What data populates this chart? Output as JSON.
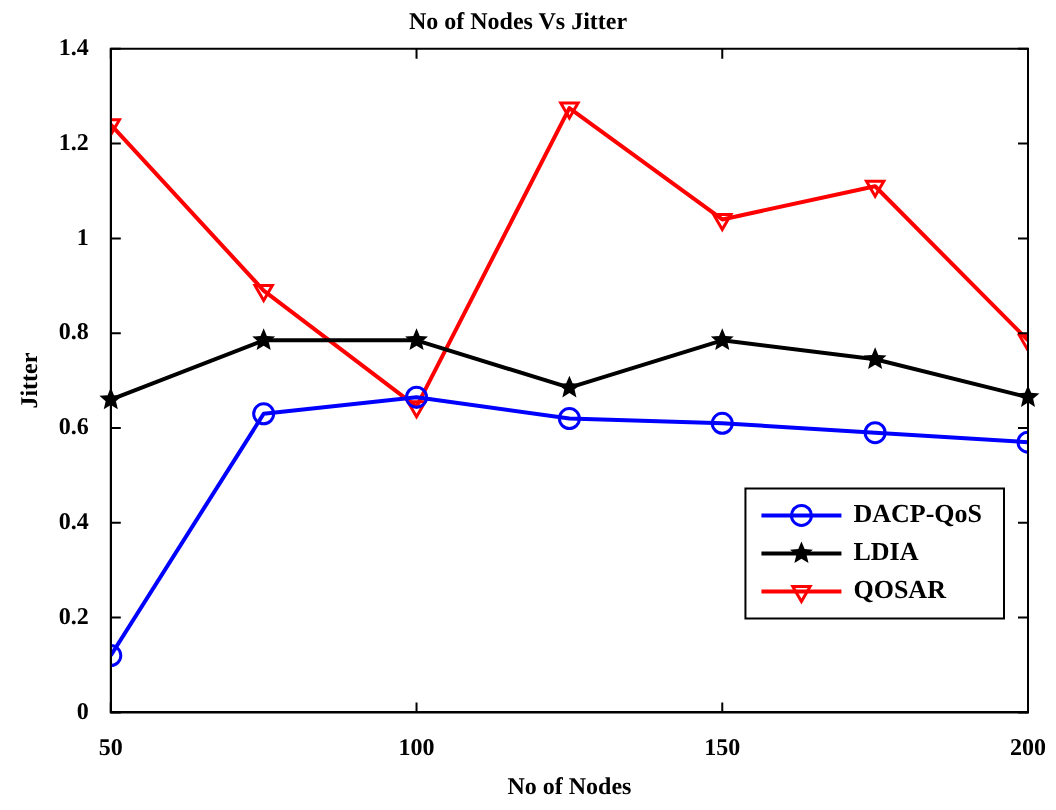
{
  "chart_data": {
    "type": "line",
    "title": "No of Nodes Vs Jitter",
    "xlabel": "No of Nodes",
    "ylabel": "Jitter",
    "x": [
      50,
      75,
      100,
      125,
      150,
      175,
      200
    ],
    "series": [
      {
        "name": "DACP-QoS",
        "color": "#0000ff",
        "marker": "circle",
        "values": [
          0.12,
          0.63,
          0.665,
          0.62,
          0.61,
          0.59,
          0.57
        ]
      },
      {
        "name": "LDIA",
        "color": "#000000",
        "marker": "star",
        "values": [
          0.66,
          0.785,
          0.785,
          0.685,
          0.785,
          0.745,
          0.665
        ]
      },
      {
        "name": "QOSAR",
        "color": "#ff0000",
        "marker": "triangle",
        "values": [
          1.24,
          0.89,
          0.645,
          1.275,
          1.04,
          1.11,
          0.785
        ]
      }
    ],
    "xlim": [
      50,
      200
    ],
    "xticks": [
      50,
      100,
      150,
      200
    ],
    "ylim": [
      0,
      1.4
    ],
    "yticks": [
      0,
      0.2,
      0.4,
      0.6,
      0.8,
      1,
      1.2,
      1.4
    ],
    "grid": false,
    "legend": "bottom right",
    "line_style": "solid"
  }
}
